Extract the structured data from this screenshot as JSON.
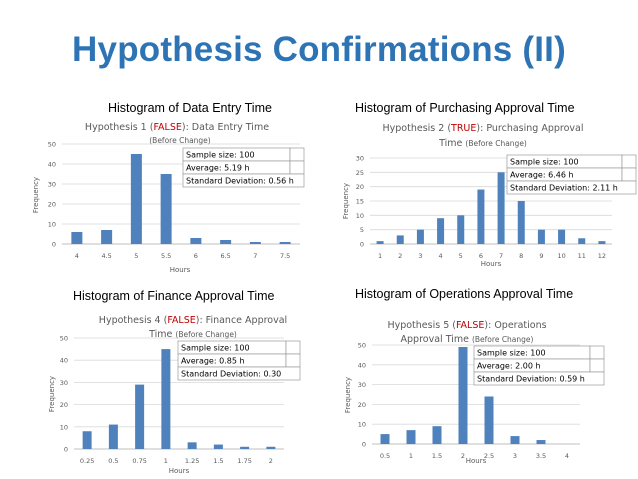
{
  "page_title": "Hypothesis Confirmations (II)",
  "colors": {
    "title": "#2e74b5",
    "bar": "#4f81bd",
    "false": "#c00000",
    "true": "#c00000",
    "axis_text": "#595959",
    "grid": "#d9d9d9"
  },
  "chart_data": [
    {
      "type": "bar",
      "panel_title": "Histogram of Data Entry Time",
      "hyp_prefix": "Hypothesis 1 (",
      "hyp_flag": "FALSE",
      "hyp_suffix": "): Data Entry Time",
      "hyp_line2": "",
      "before": "(Before Change)",
      "categories": [
        "4",
        "4.5",
        "5",
        "5.5",
        "6",
        "6.5",
        "7",
        "7.5"
      ],
      "values": [
        6,
        7,
        45,
        35,
        3,
        2,
        1,
        1
      ],
      "ylim": [
        0,
        50
      ],
      "yticks": [
        "0",
        "10",
        "20",
        "30",
        "40",
        "50"
      ],
      "xlabel": "Hours",
      "ylabel": "Frequency",
      "stats": [
        "Sample size: 100",
        "Average: 5.19 h",
        "Standard Deviation: 0.56 h"
      ]
    },
    {
      "type": "bar",
      "panel_title": "Histogram of Purchasing Approval Time",
      "hyp_prefix": "Hypothesis 2 (",
      "hyp_flag": "TRUE",
      "hyp_suffix": "): Purchasing Approval",
      "hyp_line2": "Time",
      "before": "(Before Change)",
      "categories": [
        "1",
        "2",
        "3",
        "4",
        "5",
        "6",
        "7",
        "8",
        "9",
        "10",
        "11",
        "12"
      ],
      "values": [
        1,
        3,
        5,
        9,
        10,
        19,
        25,
        15,
        5,
        5,
        2,
        1
      ],
      "ylim": [
        0,
        30
      ],
      "yticks": [
        "0",
        "5",
        "10",
        "15",
        "20",
        "25",
        "30"
      ],
      "xlabel": "Hours",
      "ylabel": "Frequency",
      "stats": [
        "Sample size: 100",
        "Average: 6.46 h",
        "Standard Deviation: 2.11 h"
      ]
    },
    {
      "type": "bar",
      "panel_title": "Histogram of Finance Approval Time",
      "hyp_prefix": "Hypothesis 4 (",
      "hyp_flag": "FALSE",
      "hyp_suffix": "): Finance Approval",
      "hyp_line2": "Time",
      "before": "(Before Change)",
      "categories": [
        "0.25",
        "0.5",
        "0.75",
        "1",
        "1.25",
        "1.5",
        "1.75",
        "2"
      ],
      "values": [
        8,
        11,
        29,
        45,
        3,
        2,
        1,
        1
      ],
      "ylim": [
        0,
        50
      ],
      "yticks": [
        "0",
        "10",
        "20",
        "30",
        "40",
        "50"
      ],
      "xlabel": "Hours",
      "ylabel": "Frequency",
      "stats": [
        "Sample size: 100",
        "Average: 0.85 h",
        "Standard Deviation: 0.30"
      ]
    },
    {
      "type": "bar",
      "panel_title": "Histogram of Operations Approval Time",
      "hyp_prefix": "Hypothesis 5 (",
      "hyp_flag": "FALSE",
      "hyp_suffix": "): Operations",
      "hyp_line2": "Approval Time",
      "before": "(Before Change)",
      "categories": [
        "0.5",
        "1",
        "1.5",
        "2",
        "2.5",
        "3",
        "3.5",
        "4"
      ],
      "values": [
        5,
        7,
        9,
        49,
        24,
        4,
        2,
        0
      ],
      "ylim": [
        0,
        50
      ],
      "yticks": [
        "0",
        "10",
        "20",
        "30",
        "40",
        "50"
      ],
      "xlabel": "Hours",
      "ylabel": "Frequency",
      "stats": [
        "Sample size: 100",
        "Average: 2.00 h",
        "Standard Deviation: 0.59 h"
      ]
    }
  ]
}
